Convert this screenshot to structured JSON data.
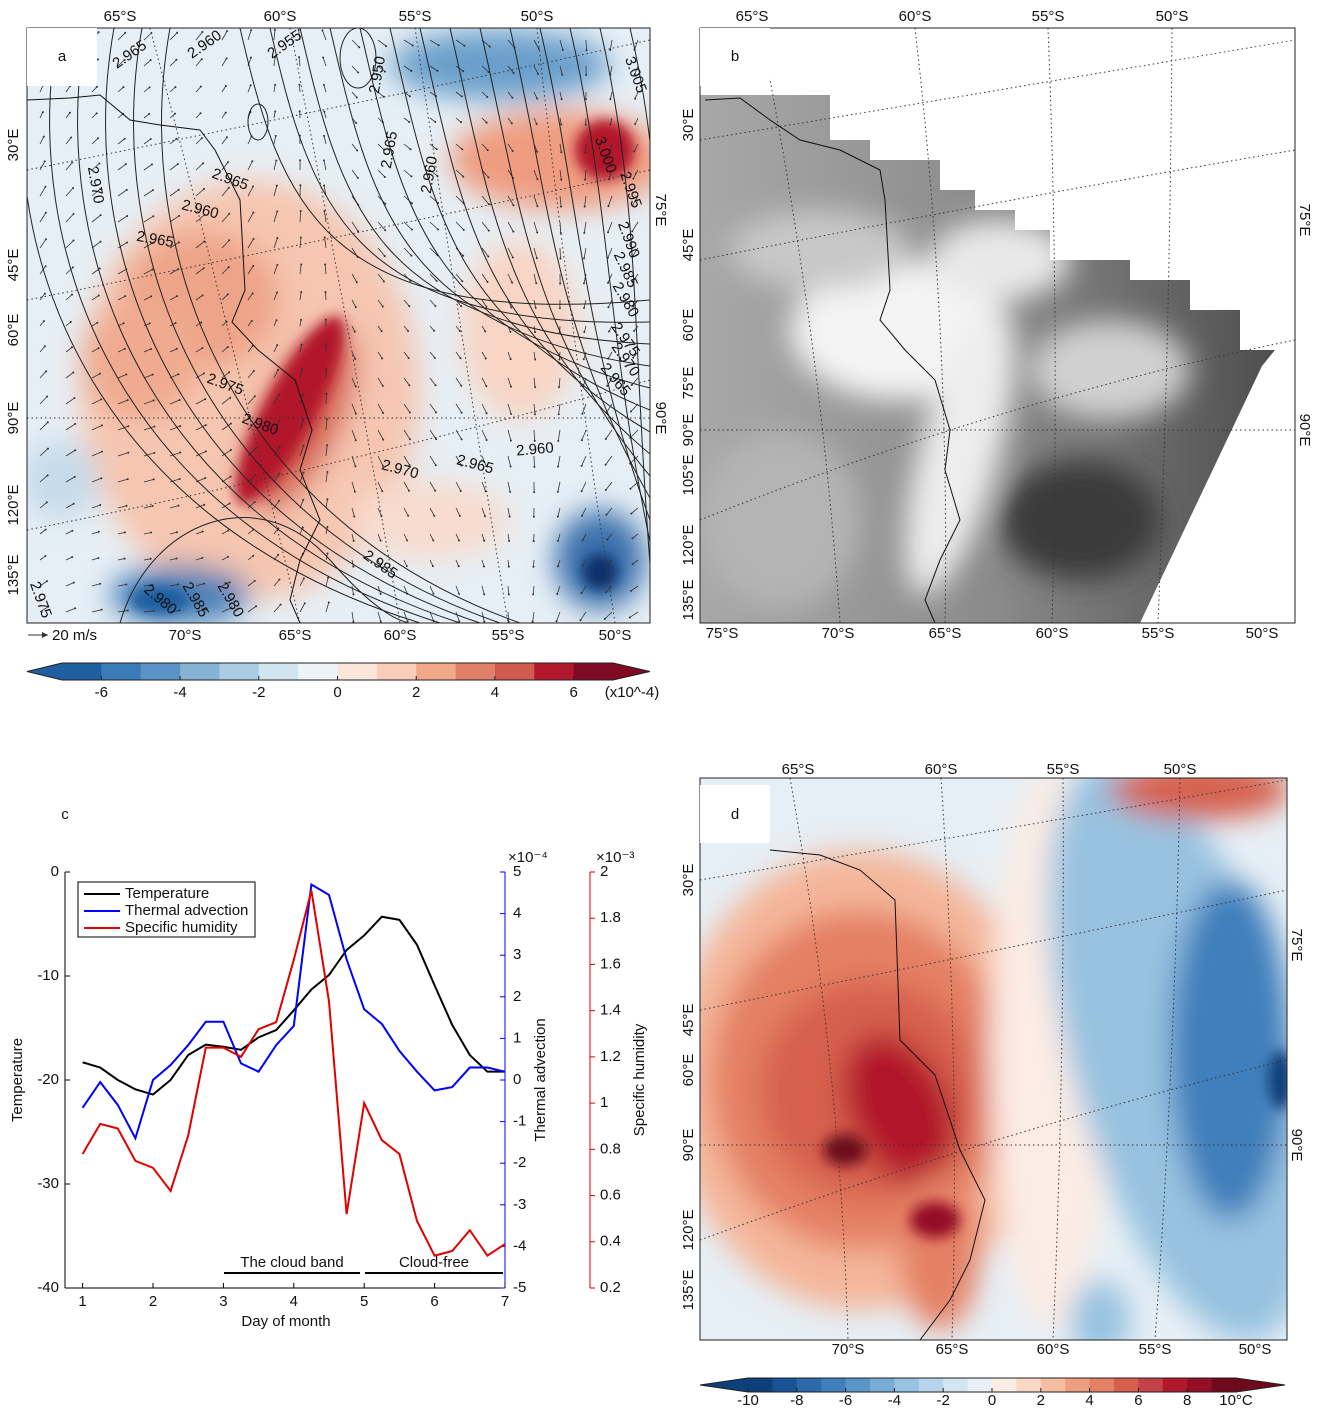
{
  "panel_a": {
    "label": "a",
    "top_labels": [
      "65°S",
      "60°S",
      "55°S",
      "50°S"
    ],
    "bottom_labels": [
      "70°S",
      "65°S",
      "60°S",
      "55°S",
      "50°S"
    ],
    "left_labels": [
      "30°E",
      "45°E",
      "60°E",
      "90°E",
      "120°E",
      "135°E"
    ],
    "right_labels": [
      "75°E",
      "90°E"
    ],
    "vector_scale": "20 m/s",
    "contour_labels": [
      "2.965",
      "2.960",
      "2.955",
      "2.950",
      "2.965",
      "2.960",
      "3.005",
      "3.000",
      "2.995",
      "2.990",
      "2.985",
      "2.980",
      "2.975",
      "2.970",
      "2.965",
      "2.970",
      "2.965",
      "2.960",
      "2.965",
      "2.975",
      "2.980",
      "2.970",
      "2.965",
      "2.960",
      "2.985",
      "2.975",
      "2.980",
      "2.985",
      "2.980"
    ],
    "colorbar": {
      "lim": [
        -7,
        7
      ],
      "ticks": [
        -6,
        -4,
        -2,
        0,
        2,
        4,
        6
      ],
      "unit": "(x10^-4)",
      "colors": [
        "#1f5fa0",
        "#3a7bb8",
        "#5a94c6",
        "#85b3d4",
        "#abcde3",
        "#d1e5f0",
        "#eef3f6",
        "#fbe6dc",
        "#f9cdb8",
        "#f1a98a",
        "#e0806a",
        "#cf5a4d",
        "#b2182b",
        "#7f0a23"
      ]
    }
  },
  "panel_b": {
    "label": "b",
    "top_labels": [
      "65°S",
      "60°S",
      "55°S",
      "50°S"
    ],
    "bottom_labels": [
      "75°S",
      "70°S",
      "65°S",
      "60°S",
      "55°S",
      "50°S"
    ],
    "left_labels": [
      "30°E",
      "45°E",
      "60°E",
      "75°E",
      "90°E",
      "105°E",
      "120°E",
      "135°E"
    ],
    "right_labels": [
      "75°E",
      "90°E"
    ]
  },
  "chart_data": {
    "type": "line",
    "label": "c",
    "x_label": "Day of month",
    "y_label": "Temperature",
    "y2_label": "Thermal advection",
    "y3_label": "Specific humidity",
    "y2_multiplier": "×10⁻⁴",
    "y3_multiplier": "×10⁻³",
    "x": [
      1,
      1.25,
      1.5,
      1.75,
      2,
      2.25,
      2.5,
      2.75,
      3,
      3.25,
      3.5,
      3.75,
      4,
      4.25,
      4.5,
      4.75,
      5,
      5.25,
      5.5,
      5.75,
      6,
      6.25,
      6.5,
      6.75,
      7
    ],
    "xlim": [
      0.75,
      7
    ],
    "xticks": [
      1,
      2,
      3,
      4,
      5,
      6,
      7
    ],
    "ylim": [
      -40,
      0
    ],
    "yticks": [
      -40,
      -30,
      -20,
      -10,
      0
    ],
    "y2lim": [
      -5,
      5
    ],
    "y2ticks": [
      -5,
      -4,
      -3,
      -2,
      -1,
      0,
      1,
      2,
      3,
      4,
      5
    ],
    "y2color": "#0000ff",
    "y3lim": [
      0.2,
      2
    ],
    "y3ticks": [
      0.2,
      0.4,
      0.6,
      0.8,
      1,
      1.2,
      1.4,
      1.6,
      1.8,
      2
    ],
    "y3color": "#e00000",
    "legend": "upper left",
    "series": [
      {
        "name": "Temperature",
        "color": "#000000",
        "axis": "y",
        "values": [
          -18.3,
          -18.8,
          -20,
          -20.9,
          -21.4,
          -20,
          -17.6,
          -16.6,
          -16.8,
          -17.1,
          -15.9,
          -15.2,
          -13.3,
          -11.3,
          -9.9,
          -7.5,
          -6.1,
          -4.3,
          -4.6,
          -7,
          -10.9,
          -14.7,
          -17.6,
          -19.2,
          -19.2
        ]
      },
      {
        "name": "Thermal advection",
        "color": "#0000ff",
        "axis": "y2",
        "values": [
          -0.67,
          -0.05,
          -0.6,
          -1.4,
          0,
          0.36,
          0.84,
          1.4,
          1.4,
          0.4,
          0.2,
          0.84,
          1.3,
          4.7,
          4.45,
          2.9,
          1.7,
          1.35,
          0.7,
          0.2,
          -0.25,
          -0.17,
          0.3,
          0.3,
          0.2
        ]
      },
      {
        "name": "Specific humidity",
        "color": "#e00000",
        "axis": "y3",
        "values": [
          0.78,
          0.91,
          0.89,
          0.75,
          0.72,
          0.62,
          0.86,
          1.24,
          1.24,
          1.2,
          1.32,
          1.35,
          1.62,
          1.92,
          1.44,
          0.52,
          1,
          0.84,
          0.78,
          0.49,
          0.34,
          0.36,
          0.45,
          0.34,
          0.39
        ]
      }
    ],
    "annotations": [
      "The cloud band",
      "Cloud-free"
    ]
  },
  "panel_d": {
    "label": "d",
    "top_labels": [
      "65°S",
      "60°S",
      "55°S",
      "50°S"
    ],
    "bottom_labels": [
      "70°S",
      "65°S",
      "60°S",
      "55°S",
      "50°S"
    ],
    "left_labels": [
      "30°E",
      "45°E",
      "60°E",
      "90°E",
      "120°E",
      "135°E"
    ],
    "right_labels": [
      "75°E",
      "90°E"
    ],
    "colorbar": {
      "lim": [
        -10,
        10
      ],
      "ticks": [
        -10,
        -8,
        -6,
        -4,
        -2,
        0,
        2,
        4,
        6,
        8,
        {
          "value": 10,
          "label": "10°C"
        }
      ],
      "colors": [
        "#0d3f7a",
        "#1a5296",
        "#2c6aab",
        "#3f7fbb",
        "#5a95c8",
        "#78acd4",
        "#97c2e0",
        "#b6d5ea",
        "#d2e5f0",
        "#e8f0f5",
        "#fbece4",
        "#f9d8c6",
        "#f5bea3",
        "#ee9f81",
        "#e48064",
        "#d6604d",
        "#c4414a",
        "#b2182b",
        "#940f26",
        "#6f0a1e"
      ]
    }
  }
}
